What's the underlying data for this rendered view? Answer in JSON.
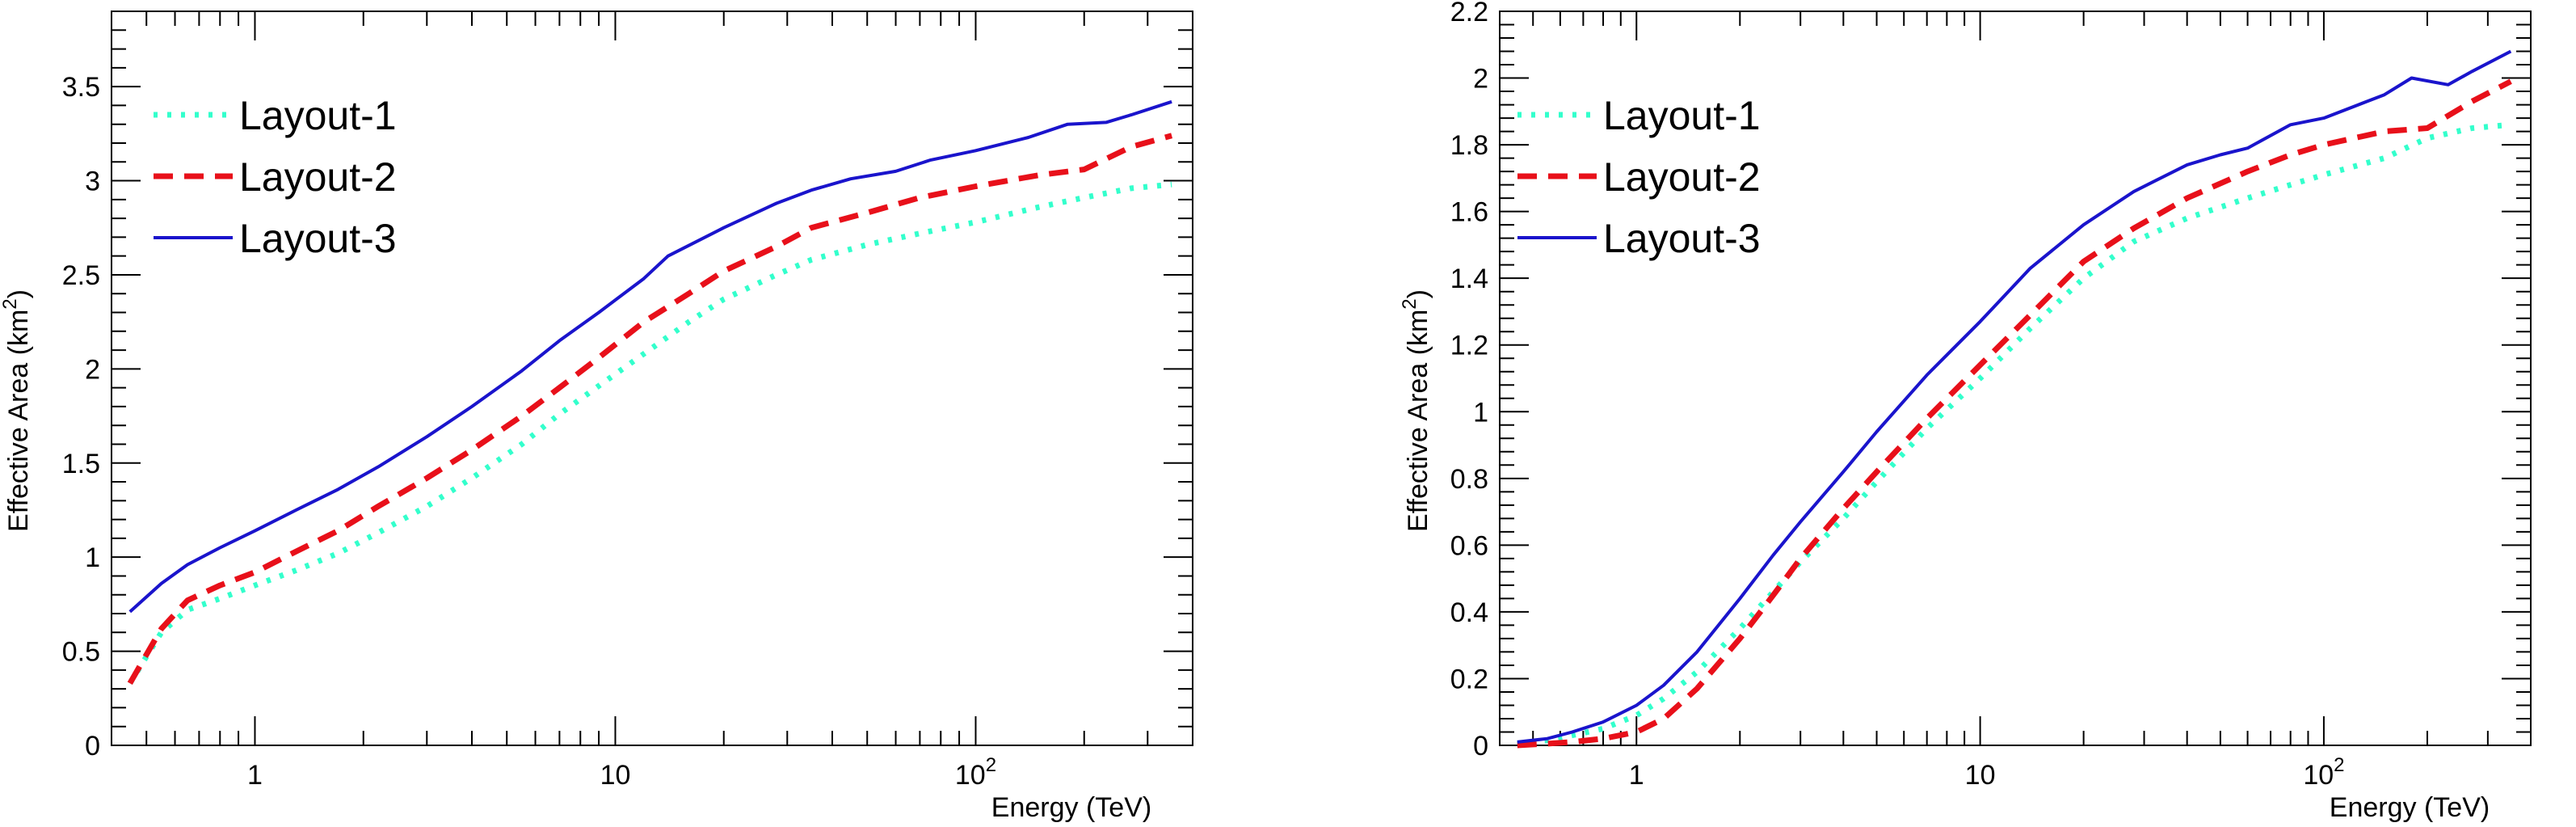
{
  "chart_data": [
    {
      "type": "line",
      "xlabel": "Energy (TeV)",
      "ylabel": "Effective Area (km",
      "ylabel_sup": "2",
      "ylabel_close": ")",
      "xscale": "log",
      "xlim": [
        0.4,
        400
      ],
      "ylim": [
        0,
        3.9
      ],
      "yticks": [
        0,
        0.5,
        1,
        1.5,
        2,
        2.5,
        3,
        3.5
      ],
      "ytick_labels": [
        "0",
        "0.5",
        "1",
        "1.5",
        "2",
        "2.5",
        "3",
        "3.5"
      ],
      "xticks": [
        {
          "value": 1,
          "label": "1",
          "sup": ""
        },
        {
          "value": 10,
          "label": "10",
          "sup": ""
        },
        {
          "value": 100,
          "label": "10",
          "sup": "2"
        }
      ],
      "grid": false,
      "legend_position": "top-left",
      "series": [
        {
          "name": "Layout-1",
          "color": "#33ffcc",
          "style": "dotted",
          "x": [
            0.45,
            0.55,
            0.65,
            0.8,
            1,
            1.3,
            1.7,
            2.2,
            3,
            4,
            5.5,
            7,
            9,
            12,
            16,
            20,
            28,
            35,
            50,
            70,
            100,
            150,
            200,
            270,
            350
          ],
          "y": [
            0.33,
            0.6,
            0.72,
            0.78,
            0.85,
            0.93,
            1.02,
            1.13,
            1.27,
            1.42,
            1.6,
            1.76,
            1.91,
            2.08,
            2.25,
            2.37,
            2.5,
            2.58,
            2.66,
            2.72,
            2.78,
            2.86,
            2.91,
            2.96,
            2.98
          ]
        },
        {
          "name": "Layout-2",
          "color": "#e8101a",
          "style": "dashed",
          "x": [
            0.45,
            0.55,
            0.65,
            0.8,
            1,
            1.3,
            1.7,
            2.2,
            3,
            4,
            5.5,
            7,
            9,
            12,
            16,
            20,
            28,
            35,
            50,
            70,
            100,
            150,
            200,
            270,
            350
          ],
          "y": [
            0.33,
            0.62,
            0.77,
            0.85,
            0.92,
            1.03,
            1.14,
            1.27,
            1.42,
            1.57,
            1.75,
            1.9,
            2.06,
            2.25,
            2.4,
            2.52,
            2.65,
            2.75,
            2.83,
            2.91,
            2.97,
            3.03,
            3.06,
            3.18,
            3.24
          ]
        },
        {
          "name": "Layout-3",
          "color": "#1a14cc",
          "style": "solid",
          "x": [
            0.45,
            0.55,
            0.65,
            0.8,
            1,
            1.3,
            1.7,
            2.2,
            3,
            4,
            5.5,
            7,
            9,
            12,
            14,
            20,
            28,
            35,
            45,
            60,
            75,
            100,
            140,
            180,
            230,
            270,
            350
          ],
          "y": [
            0.71,
            0.86,
            0.96,
            1.05,
            1.14,
            1.25,
            1.36,
            1.48,
            1.64,
            1.8,
            1.99,
            2.15,
            2.3,
            2.48,
            2.6,
            2.75,
            2.88,
            2.95,
            3.01,
            3.05,
            3.11,
            3.16,
            3.23,
            3.3,
            3.31,
            3.35,
            3.42
          ]
        }
      ]
    },
    {
      "type": "line",
      "xlabel": "Energy (TeV)",
      "ylabel": "Effective Area (km",
      "ylabel_sup": "2",
      "ylabel_close": ")",
      "xscale": "log",
      "xlim": [
        0.4,
        400
      ],
      "ylim": [
        0,
        2.2
      ],
      "yticks": [
        0,
        0.2,
        0.4,
        0.6,
        0.8,
        1,
        1.2,
        1.4,
        1.6,
        1.8,
        2,
        2.2
      ],
      "ytick_labels": [
        "0",
        "0.2",
        "0.4",
        "0.6",
        "0.8",
        "1",
        "1.2",
        "1.4",
        "1.6",
        "1.8",
        "2",
        "2.2"
      ],
      "xticks": [
        {
          "value": 1,
          "label": "1",
          "sup": ""
        },
        {
          "value": 10,
          "label": "10",
          "sup": ""
        },
        {
          "value": 100,
          "label": "10",
          "sup": "2"
        }
      ],
      "grid": false,
      "legend_position": "top-left",
      "series": [
        {
          "name": "Layout-1",
          "color": "#33ffcc",
          "style": "dotted",
          "x": [
            0.45,
            0.55,
            0.65,
            0.8,
            1,
            1.2,
            1.5,
            2,
            2.5,
            3,
            4,
            5,
            7,
            10,
            14,
            20,
            28,
            40,
            60,
            80,
            100,
            150,
            200,
            270,
            350
          ],
          "y": [
            0.005,
            0.015,
            0.03,
            0.05,
            0.09,
            0.14,
            0.22,
            0.35,
            0.46,
            0.55,
            0.68,
            0.79,
            0.95,
            1.1,
            1.25,
            1.4,
            1.51,
            1.58,
            1.64,
            1.68,
            1.71,
            1.76,
            1.82,
            1.85,
            1.86
          ]
        },
        {
          "name": "Layout-2",
          "color": "#e8101a",
          "style": "dashed",
          "x": [
            0.45,
            0.55,
            0.65,
            0.8,
            1,
            1.2,
            1.5,
            2,
            2.5,
            3,
            4,
            5,
            7,
            10,
            14,
            20,
            28,
            40,
            60,
            80,
            100,
            150,
            200,
            270,
            350
          ],
          "y": [
            0.0,
            0.005,
            0.01,
            0.02,
            0.04,
            0.08,
            0.17,
            0.32,
            0.45,
            0.56,
            0.71,
            0.82,
            0.98,
            1.14,
            1.29,
            1.45,
            1.55,
            1.64,
            1.72,
            1.77,
            1.8,
            1.84,
            1.85,
            1.93,
            1.99
          ]
        },
        {
          "name": "Layout-3",
          "color": "#1a14cc",
          "style": "solid",
          "x": [
            0.45,
            0.55,
            0.65,
            0.8,
            1,
            1.2,
            1.5,
            2,
            2.5,
            3,
            4,
            5,
            7,
            10,
            14,
            20,
            28,
            40,
            50,
            60,
            80,
            100,
            150,
            180,
            230,
            270,
            350
          ],
          "y": [
            0.01,
            0.02,
            0.04,
            0.07,
            0.12,
            0.18,
            0.28,
            0.44,
            0.57,
            0.67,
            0.82,
            0.94,
            1.11,
            1.27,
            1.43,
            1.56,
            1.66,
            1.74,
            1.77,
            1.79,
            1.86,
            1.88,
            1.95,
            2.0,
            1.98,
            2.02,
            2.08
          ]
        }
      ]
    }
  ]
}
